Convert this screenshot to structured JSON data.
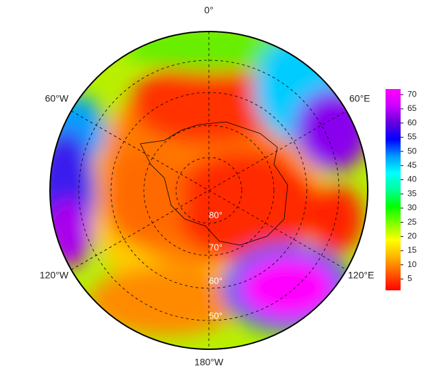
{
  "chart_data": {
    "type": "polar-map",
    "longitude_labels": [
      "0°",
      "60°E",
      "120°E",
      "180°W",
      "120°W",
      "60°W"
    ],
    "latitude_labels": [
      "80°",
      "70°",
      "60°",
      "50°"
    ],
    "colorbar": {
      "lim": [
        1,
        72
      ],
      "ticks": [
        5,
        10,
        15,
        20,
        25,
        30,
        35,
        40,
        45,
        50,
        55,
        60,
        65,
        70
      ],
      "colormap": [
        "#ff0000",
        "#ff5a00",
        "#ffb400",
        "#ffff00",
        "#7fff00",
        "#00ff00",
        "#00ff99",
        "#00ffff",
        "#0099ff",
        "#0000ff",
        "#6600dd",
        "#cc00ff",
        "#ff00ff"
      ]
    }
  }
}
